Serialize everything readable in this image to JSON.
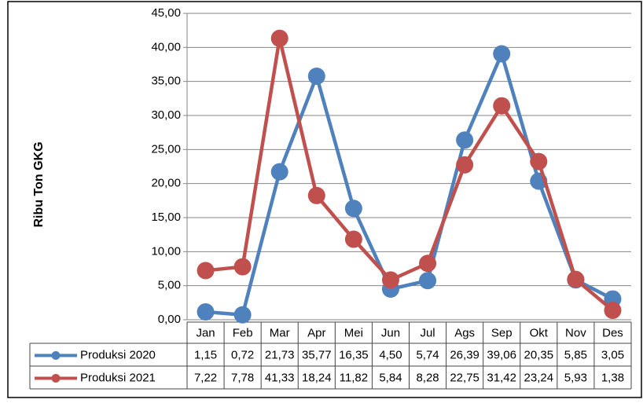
{
  "chart_data": {
    "type": "line",
    "y_label": "Ribu Ton GKG",
    "categories": [
      "Jan",
      "Feb",
      "Mar",
      "Apr",
      "Mei",
      "Jun",
      "Jul",
      "Ags",
      "Sep",
      "Okt",
      "Nov",
      "Des"
    ],
    "series": [
      {
        "name": "Produksi 2020",
        "color": "#4f81bd",
        "values": [
          1.15,
          0.72,
          21.73,
          35.77,
          16.35,
          4.5,
          5.74,
          26.39,
          39.06,
          20.35,
          5.85,
          3.05
        ],
        "value_labels": [
          "1,15",
          "0,72",
          "21,73",
          "35,77",
          "16,35",
          "4,50",
          "5,74",
          "26,39",
          "39,06",
          "20,35",
          "5,85",
          "3,05"
        ]
      },
      {
        "name": "Produksi 2021",
        "color": "#c0504d",
        "values": [
          7.22,
          7.78,
          41.33,
          18.24,
          11.82,
          5.84,
          8.28,
          22.75,
          31.42,
          23.24,
          5.93,
          1.38
        ],
        "value_labels": [
          "7,22",
          "7,78",
          "41,33",
          "18,24",
          "11,82",
          "5,84",
          "8,28",
          "22,75",
          "31,42",
          "23,24",
          "5,93",
          "1,38"
        ]
      }
    ],
    "ylim": [
      0,
      45
    ],
    "yticks": [
      {
        "value": 0,
        "label": "0,00"
      },
      {
        "value": 5,
        "label": "5,00"
      },
      {
        "value": 10,
        "label": "10,00"
      },
      {
        "value": 15,
        "label": "15,00"
      },
      {
        "value": 20,
        "label": "20,00"
      },
      {
        "value": 25,
        "label": "25,00"
      },
      {
        "value": 30,
        "label": "30,00"
      },
      {
        "value": 35,
        "label": "35,00"
      },
      {
        "value": 40,
        "label": "40,00"
      },
      {
        "value": 45,
        "label": "45,00"
      }
    ],
    "grid": true
  }
}
